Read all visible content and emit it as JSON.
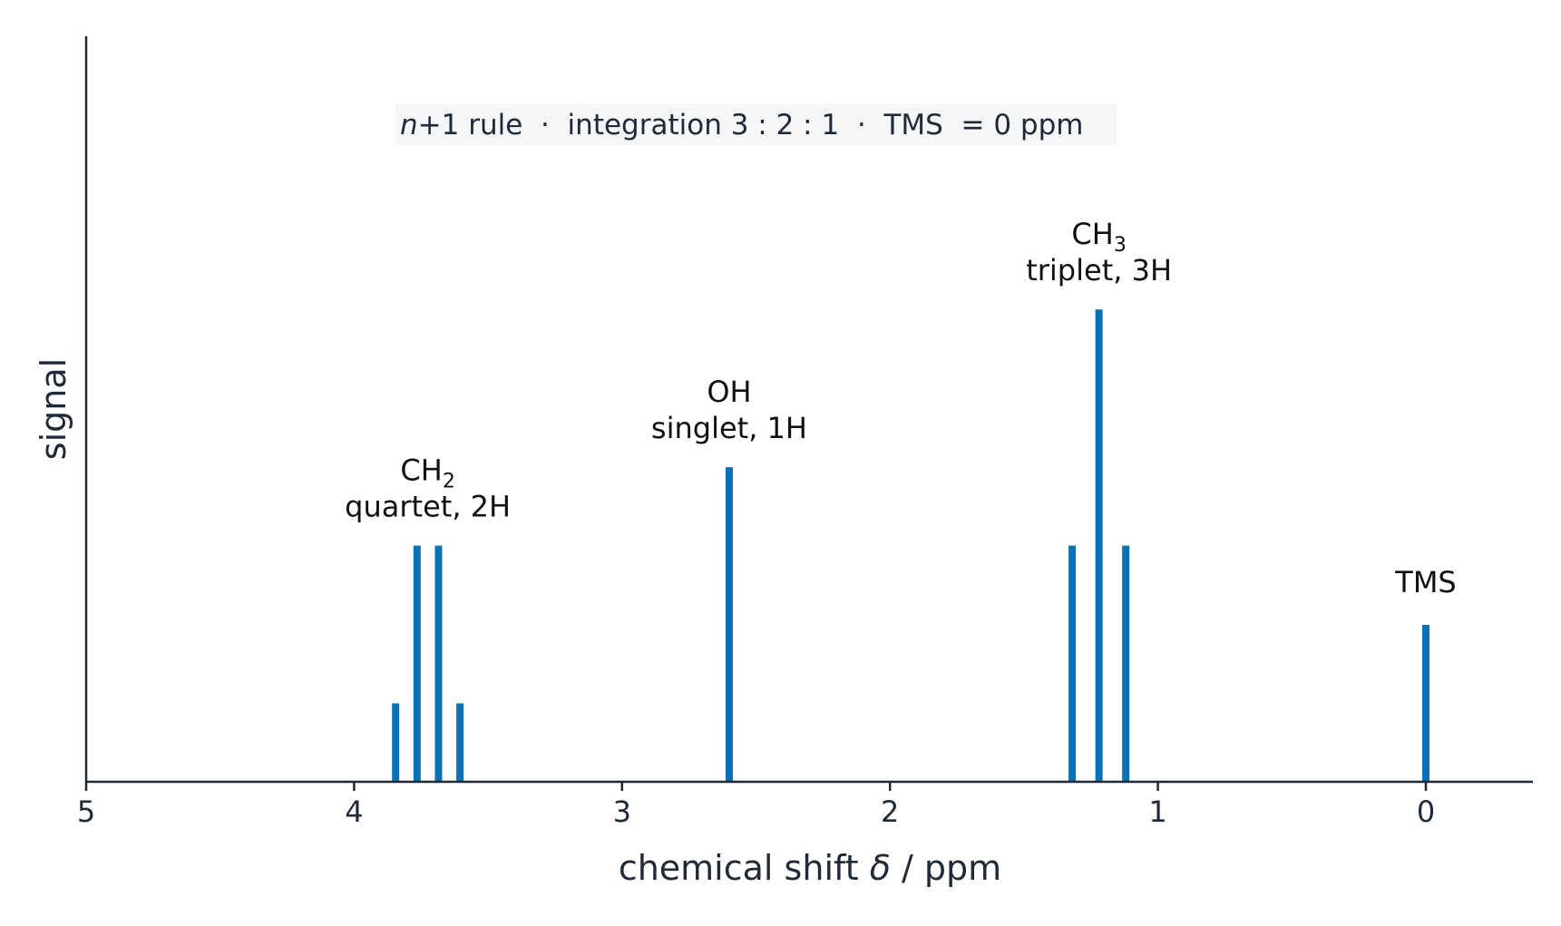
{
  "chart_data": {
    "type": "bar",
    "xlabel": "chemical shift δ / ppm",
    "xlabel_pre": "chemical shift ",
    "xlabel_symbol": "δ",
    "xlabel_post": " / ppm",
    "ylabel": "signal",
    "xlim": [
      5,
      -0.4
    ],
    "ylim": [
      0,
      100
    ],
    "x_reversed": true,
    "grid": false,
    "xticks": [
      5,
      4,
      3,
      2,
      1,
      0
    ],
    "xtick_labels": [
      "5",
      "4",
      "3",
      "2",
      "1",
      "0"
    ],
    "bar_color": "#0a72b4",
    "annotation": {
      "italic_prefix": "n",
      "text": "+1 rule  ·  integration 3 : 2 : 1  ·  TMS  = 0 ppm",
      "background": "#f4f6f8"
    },
    "series": [
      {
        "group": "CH2",
        "label_main": "CH",
        "label_sub": "2",
        "label_detail": "quartet, 2H",
        "x": [
          3.845,
          3.765,
          3.685,
          3.605
        ],
        "y": [
          10.5,
          31.6,
          31.6,
          10.5
        ]
      },
      {
        "group": "OH",
        "label_main": "OH",
        "label_sub": "",
        "label_detail": "singlet, 1H",
        "x": [
          2.6
        ],
        "y": [
          42.1
        ]
      },
      {
        "group": "CH3",
        "label_main": "CH",
        "label_sub": "3",
        "label_detail": "triplet, 3H",
        "x": [
          1.32,
          1.22,
          1.12
        ],
        "y": [
          31.6,
          63.2,
          31.6
        ]
      },
      {
        "group": "TMS",
        "label_main": "TMS",
        "label_sub": "",
        "label_detail": "",
        "x": [
          0.0
        ],
        "y": [
          21.0
        ]
      }
    ]
  }
}
